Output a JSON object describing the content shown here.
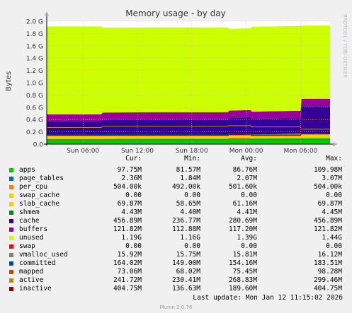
{
  "title": "Memory usage - by day",
  "ylabel": "Bytes",
  "watermark": "RRDTOOL / TOBI OETIKER",
  "columns": {
    "cur": "Cur:",
    "min": "Min:",
    "avg": "Avg:",
    "max": "Max:"
  },
  "legend": [
    {
      "name": "apps",
      "cur": "97.75M",
      "min": "81.57M",
      "avg": "86.76M",
      "max": "109.98M",
      "color": "#00cc00"
    },
    {
      "name": "page_tables",
      "cur": "2.36M",
      "min": "1.84M",
      "avg": "2.07M",
      "max": "3.07M",
      "color": "#0066b3"
    },
    {
      "name": "per_cpu",
      "cur": "504.00k",
      "min": "492.00k",
      "avg": "501.60k",
      "max": "504.00k",
      "color": "#ff8000"
    },
    {
      "name": "swap_cache",
      "cur": "0.00",
      "min": "0.00",
      "avg": "0.00",
      "max": "0.00",
      "color": "#ffcc00"
    },
    {
      "name": "slab_cache",
      "cur": "69.87M",
      "min": "58.65M",
      "avg": "61.16M",
      "max": "69.87M",
      "color": "#ffcc00"
    },
    {
      "name": "shmem",
      "cur": "4.43M",
      "min": "4.40M",
      "avg": "4.41M",
      "max": "4.45M",
      "color": "#008f00"
    },
    {
      "name": "cache",
      "cur": "456.89M",
      "min": "236.77M",
      "avg": "280.69M",
      "max": "456.89M",
      "color": "#330099"
    },
    {
      "name": "buffers",
      "cur": "121.82M",
      "min": "112.88M",
      "avg": "117.20M",
      "max": "121.82M",
      "color": "#990099"
    },
    {
      "name": "unused",
      "cur": "1.19G",
      "min": "1.16G",
      "avg": "1.39G",
      "max": "1.44G",
      "color": "#ccff00"
    },
    {
      "name": "swap",
      "cur": "0.00",
      "min": "0.00",
      "avg": "0.00",
      "max": "0.00",
      "color": "#ff0000"
    },
    {
      "name": "vmalloc_used",
      "cur": "15.92M",
      "min": "15.75M",
      "avg": "15.81M",
      "max": "16.12M",
      "color": "#808080"
    },
    {
      "name": "committed",
      "cur": "164.02M",
      "min": "149.00M",
      "avg": "154.16M",
      "max": "183.51M",
      "color": "#004d80"
    },
    {
      "name": "mapped",
      "cur": "73.06M",
      "min": "68.02M",
      "avg": "75.45M",
      "max": "98.28M",
      "color": "#b34d00"
    },
    {
      "name": "active",
      "cur": "241.72M",
      "min": "230.41M",
      "avg": "268.83M",
      "max": "299.46M",
      "color": "#b38f00"
    },
    {
      "name": "inactive",
      "cur": "404.75M",
      "min": "136.63M",
      "avg": "189.60M",
      "max": "404.75M",
      "color": "#8f0000"
    }
  ],
  "last_update": "Last update: Mon Jan 12 11:15:02 2026",
  "footer": "Munin 2.0.76",
  "chart_data": {
    "type": "area",
    "title": "Memory usage - by day",
    "ylabel": "Bytes",
    "y_ticks": [
      "0.0",
      "0.2 G",
      "0.4 G",
      "0.6 G",
      "0.8 G",
      "1.0 G",
      "1.2 G",
      "1.4 G",
      "1.6 G",
      "1.8 G",
      "2.0 G"
    ],
    "ylim": [
      0,
      2.0
    ],
    "y_unit": "G",
    "x_ticks": [
      "Sun 06:00",
      "Sun 12:00",
      "Sun 18:00",
      "Mon 00:00",
      "Mon 06:00"
    ],
    "x_tick_hours": [
      6,
      12,
      18,
      24,
      30
    ],
    "xlim_hours": [
      2,
      33.25
    ],
    "grid": true,
    "stacked_layers": [
      {
        "name": "apps",
        "color": "#00cc00",
        "points": [
          [
            2,
            0.085
          ],
          [
            8,
            0.085
          ],
          [
            14,
            0.088
          ],
          [
            22,
            0.088
          ],
          [
            24.5,
            0.095
          ],
          [
            30,
            0.098
          ],
          [
            33.25,
            0.098
          ]
        ]
      },
      {
        "name": "slab_cache",
        "color": "#ffcc00",
        "points": [
          [
            2,
            0.06
          ],
          [
            14,
            0.06
          ],
          [
            22,
            0.061
          ],
          [
            24.5,
            0.062
          ],
          [
            30,
            0.07
          ],
          [
            33.25,
            0.07
          ]
        ]
      },
      {
        "name": "cache",
        "color": "#330099",
        "points": [
          [
            2,
            0.23
          ],
          [
            8,
            0.23
          ],
          [
            8.2,
            0.255
          ],
          [
            22,
            0.255
          ],
          [
            22.1,
            0.28
          ],
          [
            24.5,
            0.28
          ],
          [
            24.6,
            0.255
          ],
          [
            30,
            0.255
          ],
          [
            30.1,
            0.45
          ],
          [
            33.25,
            0.45
          ]
        ]
      },
      {
        "name": "buffers",
        "color": "#990099",
        "points": [
          [
            2,
            0.11
          ],
          [
            8,
            0.11
          ],
          [
            8.2,
            0.115
          ],
          [
            22,
            0.115
          ],
          [
            24.5,
            0.117
          ],
          [
            30,
            0.12
          ],
          [
            33.25,
            0.12
          ]
        ]
      },
      {
        "name": "unused",
        "color": "#ccff00",
        "points": [
          [
            2,
            1.43
          ],
          [
            8,
            1.43
          ],
          [
            8.2,
            1.38
          ],
          [
            22,
            1.38
          ],
          [
            22.1,
            1.33
          ],
          [
            24.5,
            1.33
          ],
          [
            24.6,
            1.38
          ],
          [
            30,
            1.38
          ],
          [
            30.1,
            1.19
          ],
          [
            33.25,
            1.19
          ]
        ]
      }
    ],
    "lines": [
      {
        "name": "swap",
        "color": "#ff0000",
        "points": [
          [
            2,
            0.0
          ],
          [
            33.25,
            0.0
          ]
        ]
      },
      {
        "name": "committed",
        "color": "#004d80",
        "points": [
          [
            2,
            0.15
          ],
          [
            22,
            0.15
          ],
          [
            22.1,
            0.17
          ],
          [
            24.5,
            0.17
          ],
          [
            24.6,
            0.15
          ],
          [
            30,
            0.15
          ],
          [
            30.1,
            0.164
          ],
          [
            33.25,
            0.164
          ]
        ]
      },
      {
        "name": "mapped",
        "color": "#b34d00",
        "points": [
          [
            2,
            0.07
          ],
          [
            22,
            0.07
          ],
          [
            22.1,
            0.09
          ],
          [
            24.5,
            0.09
          ],
          [
            24.6,
            0.07
          ],
          [
            30,
            0.07
          ],
          [
            30.1,
            0.073
          ],
          [
            33.25,
            0.073
          ]
        ]
      },
      {
        "name": "active",
        "color": "#b38f00",
        "points": [
          [
            2,
            0.27
          ],
          [
            8,
            0.27
          ],
          [
            8.2,
            0.29
          ],
          [
            22,
            0.29
          ],
          [
            22.1,
            0.3
          ],
          [
            24.5,
            0.3
          ],
          [
            24.6,
            0.28
          ],
          [
            30,
            0.28
          ],
          [
            30.1,
            0.242
          ],
          [
            33.25,
            0.242
          ]
        ]
      },
      {
        "name": "inactive",
        "color": "#8f0000",
        "points": [
          [
            2,
            0.14
          ],
          [
            22,
            0.14
          ],
          [
            22.1,
            0.15
          ],
          [
            24.5,
            0.15
          ],
          [
            24.6,
            0.14
          ],
          [
            30,
            0.14
          ],
          [
            30.1,
            0.405
          ],
          [
            33.25,
            0.405
          ]
        ]
      }
    ]
  }
}
